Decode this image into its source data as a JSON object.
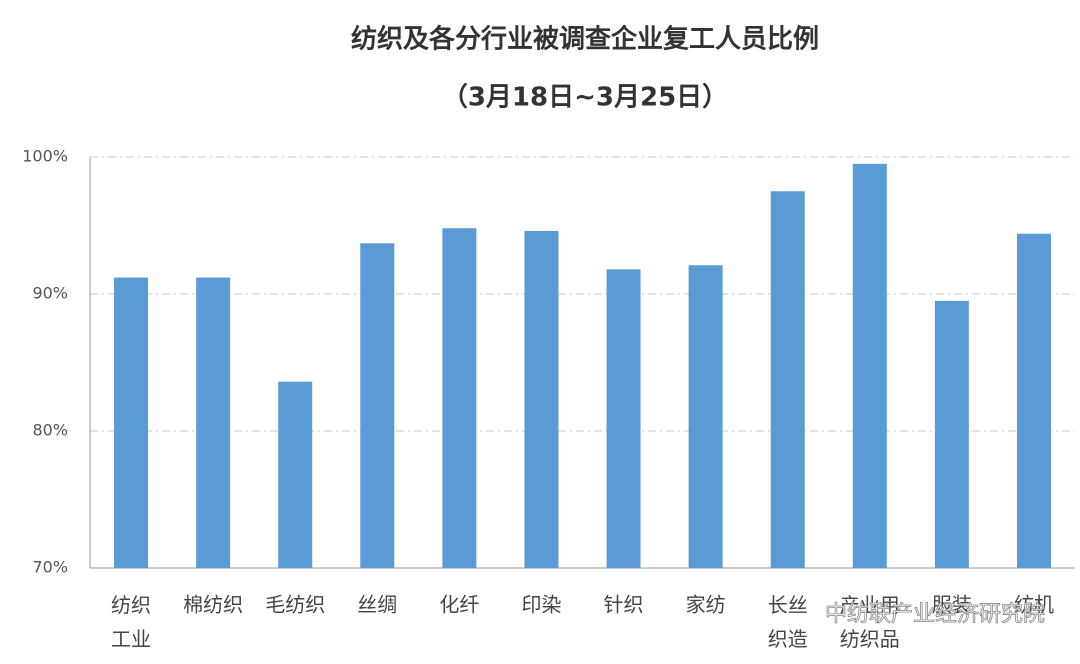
{
  "chart_data": {
    "type": "bar",
    "title": "纺织及各分行业被调查企业复工人员比例",
    "subtitle": "（3月18日~3月25日）",
    "categories": [
      "纺织工业",
      "棉纺织",
      "毛纺织",
      "丝绸",
      "化纤",
      "印染",
      "针织",
      "家纺",
      "长丝织造",
      "产业用纺织品",
      "服装",
      "纺机"
    ],
    "values": [
      91.2,
      91.2,
      83.6,
      93.7,
      94.8,
      94.6,
      91.8,
      92.1,
      97.5,
      99.5,
      89.5,
      94.4
    ],
    "color": "#5b9bd5",
    "ylim": [
      70,
      100
    ],
    "yticks": [
      {
        "value": 70,
        "label": "70%"
      },
      {
        "value": 80,
        "label": "80%"
      },
      {
        "value": 90,
        "label": "90%"
      },
      {
        "value": 100,
        "label": "100%"
      }
    ],
    "grid": true,
    "watermark": "中纺联产业经济研究院"
  }
}
